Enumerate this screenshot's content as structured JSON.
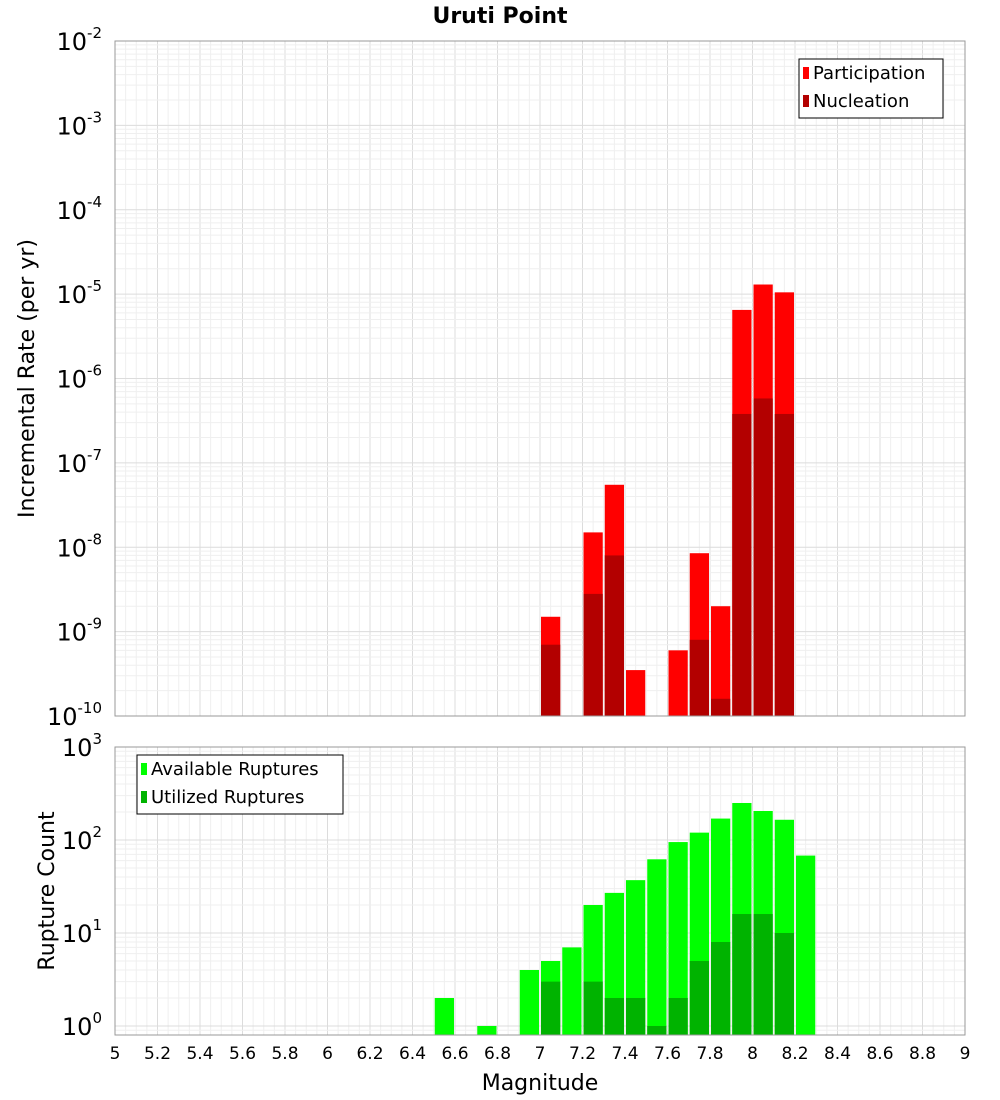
{
  "chart_data": {
    "type": "bar",
    "title": "Uruti Point",
    "xlabel": "Magnitude",
    "x_range": [
      5,
      9
    ],
    "x_ticks": [
      "5",
      "5.2",
      "5.4",
      "5.6",
      "5.8",
      "6",
      "6.2",
      "6.4",
      "6.6",
      "6.8",
      "7",
      "7.2",
      "7.4",
      "7.6",
      "7.8",
      "8",
      "8.2",
      "8.4",
      "8.6",
      "8.8",
      "9"
    ],
    "panels": [
      {
        "name": "rate",
        "ylabel": "Incremental Rate (per yr)",
        "scale": "log",
        "ylim": [
          1e-10,
          0.01
        ],
        "y_ticks": [
          {
            "base": "10",
            "exp": "-10"
          },
          {
            "base": "10",
            "exp": "-9"
          },
          {
            "base": "10",
            "exp": "-8"
          },
          {
            "base": "10",
            "exp": "-7"
          },
          {
            "base": "10",
            "exp": "-6"
          },
          {
            "base": "10",
            "exp": "-5"
          },
          {
            "base": "10",
            "exp": "-4"
          },
          {
            "base": "10",
            "exp": "-3"
          },
          {
            "base": "10",
            "exp": "-2"
          }
        ],
        "legend": [
          "Participation",
          "Nucleation"
        ],
        "legend_position": "top-right",
        "series": [
          {
            "name": "Participation",
            "color": "#ff0000",
            "x": [
              7.05,
              7.25,
              7.35,
              7.45,
              7.65,
              7.75,
              7.85,
              7.95,
              8.05,
              8.15
            ],
            "values": [
              1.5e-09,
              1.5e-08,
              5.5e-08,
              3.5e-10,
              6e-10,
              8.5e-09,
              2e-09,
              6.5e-06,
              1.3e-05,
              1.05e-05
            ]
          },
          {
            "name": "Nucleation",
            "color": "#b30000",
            "x": [
              7.05,
              7.25,
              7.35,
              7.75,
              7.85,
              7.95,
              8.05,
              8.15
            ],
            "values": [
              7e-10,
              2.8e-09,
              8e-09,
              8e-10,
              1.6e-10,
              3.8e-07,
              5.8e-07,
              3.8e-07
            ]
          }
        ]
      },
      {
        "name": "count",
        "ylabel": "Rupture Count",
        "scale": "log",
        "ylim": [
          0.8,
          1000
        ],
        "y_ticks": [
          {
            "base": "10",
            "exp": "0"
          },
          {
            "base": "10",
            "exp": "1"
          },
          {
            "base": "10",
            "exp": "2"
          },
          {
            "base": "10",
            "exp": "3"
          }
        ],
        "legend": [
          "Available Ruptures",
          "Utilized Ruptures"
        ],
        "legend_position": "top-left",
        "series": [
          {
            "name": "Available Ruptures",
            "color": "#00ff00",
            "x": [
              6.55,
              6.75,
              6.95,
              7.05,
              7.15,
              7.25,
              7.35,
              7.45,
              7.55,
              7.65,
              7.75,
              7.85,
              7.95,
              8.05,
              8.15,
              8.25
            ],
            "values": [
              2,
              1,
              4,
              5,
              7,
              20,
              27,
              37,
              62,
              95,
              120,
              170,
              250,
              205,
              165,
              68
            ]
          },
          {
            "name": "Utilized Ruptures",
            "color": "#00b300",
            "x": [
              7.05,
              7.25,
              7.35,
              7.45,
              7.55,
              7.65,
              7.75,
              7.85,
              7.95,
              8.05,
              8.15
            ],
            "values": [
              3,
              3,
              2,
              2,
              1,
              2,
              5,
              8,
              16,
              16,
              10
            ]
          }
        ]
      }
    ]
  }
}
